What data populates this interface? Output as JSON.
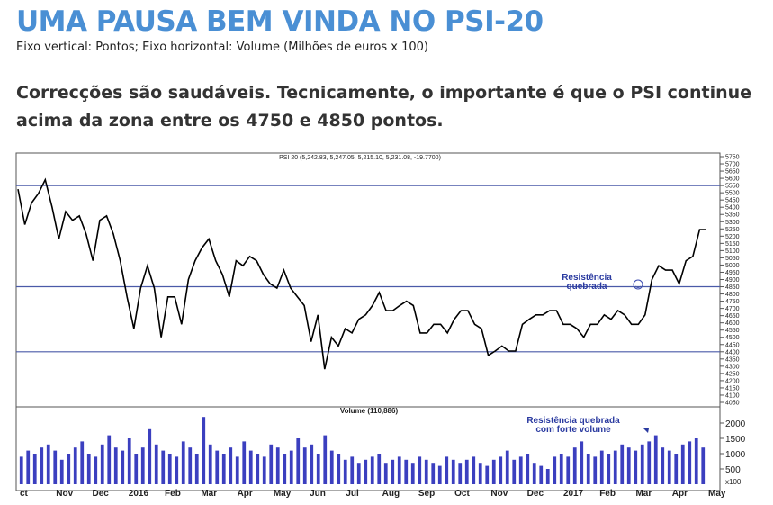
{
  "header": {
    "title": "UMA PAUSA BEM VINDA NO PSI-20",
    "subtitle": "Eixo vertical: Pontos; Eixo horizontal: Volume (Milhões de euros x 100)",
    "lead": "Correcções são saudáveis. Tecnicamente, o importante é que o PSI continue acima da zona entre os 4750 e 4850 pontos."
  },
  "x_axis_labels": [
    "ct",
    "Nov",
    "Dec",
    "2016",
    "Feb",
    "Mar",
    "Apr",
    "May",
    "Jun",
    "Jul",
    "Aug",
    "Sep",
    "Oct",
    "Nov",
    "Dec",
    "2017",
    "Feb",
    "Mar",
    "Apr",
    "May"
  ],
  "chart_data": [
    {
      "type": "line",
      "title": "PSI 20 (5,242.83, 5,247.05, 5,215.10, 5,231.08, -19.7700)",
      "color": "#000000",
      "values": [
        5525,
        5280,
        5430,
        5495,
        5590,
        5400,
        5180,
        5370,
        5310,
        5340,
        5215,
        5030,
        5310,
        5340,
        5215,
        5030,
        4780,
        4560,
        4840,
        4995,
        4840,
        4500,
        4780,
        4780,
        4590,
        4900,
        5030,
        5120,
        5180,
        5030,
        4935,
        4780,
        5030,
        4995,
        5060,
        5030,
        4935,
        4870,
        4840,
        4965,
        4840,
        4780,
        4720,
        4470,
        4655,
        4280,
        4500,
        4440,
        4560,
        4530,
        4625,
        4655,
        4720,
        4810,
        4685,
        4685,
        4720,
        4750,
        4720,
        4530,
        4530,
        4590,
        4590,
        4530,
        4625,
        4685,
        4685,
        4590,
        4560,
        4375,
        4405,
        4440,
        4405,
        4405,
        4590,
        4625,
        4655,
        4655,
        4685,
        4685,
        4590,
        4590,
        4560,
        4500,
        4590,
        4590,
        4655,
        4625,
        4685,
        4655,
        4590,
        4590,
        4655,
        4900,
        4995,
        4965,
        4965,
        4870,
        5030,
        5060,
        5245,
        5245
      ],
      "ylim": [
        4050,
        5750
      ],
      "yticks": [
        5750,
        5700,
        5650,
        5600,
        5550,
        5500,
        5450,
        5400,
        5350,
        5300,
        5250,
        5200,
        5150,
        5100,
        5050,
        5000,
        4950,
        4900,
        4850,
        4800,
        4750,
        4700,
        4650,
        4600,
        4550,
        4500,
        4450,
        4400,
        4350,
        4300,
        4250,
        4200,
        4150,
        4100,
        4050
      ],
      "reference_lines": [
        5550,
        4850,
        4400
      ],
      "reference_color": "#4a5aa8",
      "annotation": [
        "Resistência",
        "quebrada"
      ]
    },
    {
      "type": "bar",
      "title": "Volume (110,886)",
      "color": "#3b3fbf",
      "values": [
        900,
        1100,
        1000,
        1200,
        1300,
        1100,
        800,
        1000,
        1200,
        1400,
        1000,
        900,
        1300,
        1600,
        1200,
        1100,
        1500,
        1000,
        1200,
        1800,
        1300,
        1100,
        1000,
        900,
        1400,
        1200,
        1000,
        2200,
        1300,
        1100,
        1000,
        1200,
        900,
        1400,
        1100,
        1000,
        900,
        1300,
        1200,
        1000,
        1100,
        1500,
        1200,
        1300,
        1000,
        1600,
        1100,
        1000,
        800,
        900,
        700,
        800,
        900,
        1000,
        700,
        800,
        900,
        800,
        700,
        900,
        800,
        700,
        600,
        900,
        800,
        700,
        800,
        900,
        700,
        600,
        800,
        900,
        1100,
        800,
        900,
        1000,
        700,
        600,
        500,
        900,
        1000,
        900,
        1200,
        1400,
        1000,
        900,
        1100,
        1000,
        1100,
        1300,
        1200,
        1100,
        1300,
        1400,
        1600,
        1200,
        1100,
        1000,
        1300,
        1400,
        1500,
        1200
      ],
      "ylim": [
        0,
        2500
      ],
      "yticks": [
        500,
        1000,
        1500,
        2000
      ],
      "unit_label": "x100",
      "annotation": [
        "Resistência quebrada",
        "com forte volume"
      ]
    }
  ]
}
